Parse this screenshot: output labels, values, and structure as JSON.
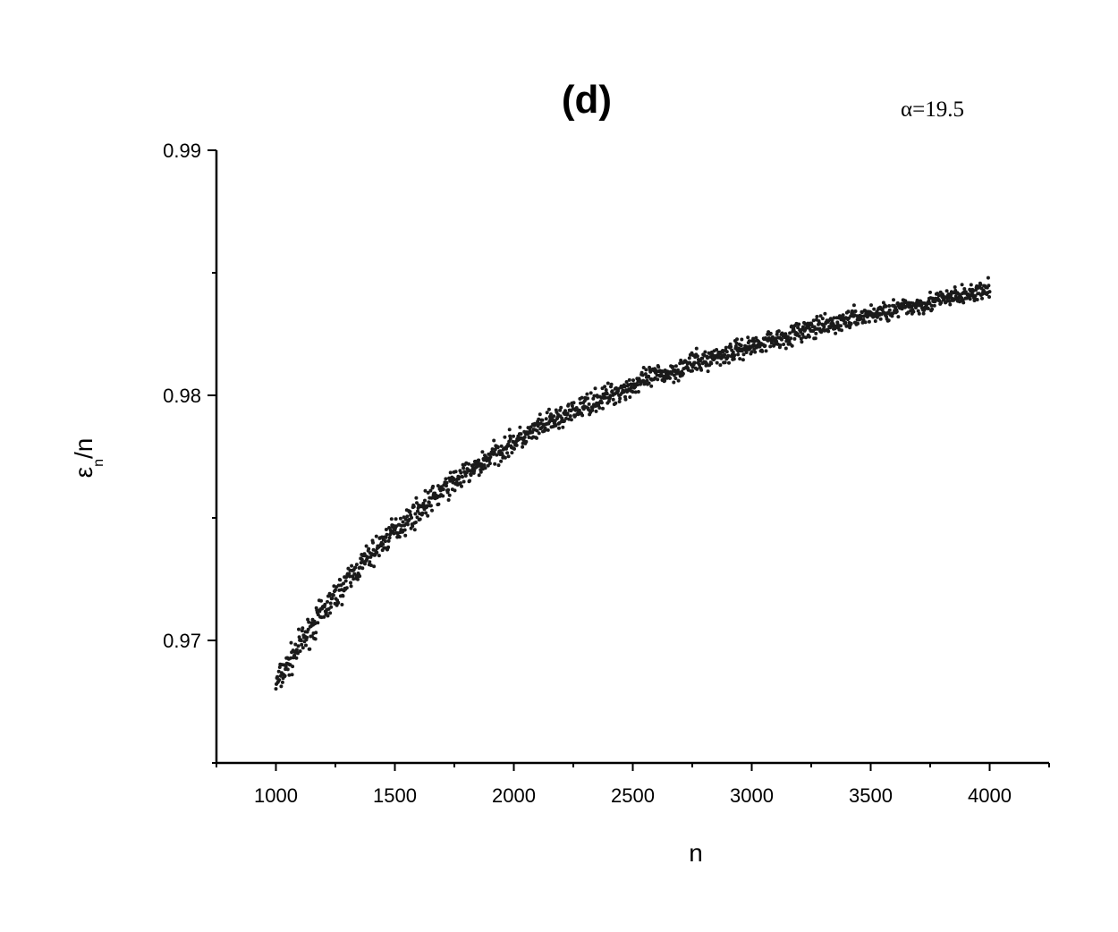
{
  "chart_data": {
    "type": "scatter",
    "title": "(d)",
    "annotation": "α=19.5",
    "xlabel": "n",
    "ylabel": {
      "main": "ε",
      "subscript": "n",
      "suffix": "/n"
    },
    "xlim": [
      750,
      4250
    ],
    "ylim": [
      0.965,
      0.99
    ],
    "x_ticks": [
      1000,
      1500,
      2000,
      2500,
      3000,
      3500,
      4000
    ],
    "x_tick_labels": [
      "1000",
      "1500",
      "2000",
      "2500",
      "3000",
      "3500",
      "4000"
    ],
    "y_ticks": [
      0.97,
      0.98,
      0.99
    ],
    "y_tick_labels": [
      "0.97",
      "0.98",
      "0.99"
    ],
    "grid": false,
    "marker_color": "#1a1a1a",
    "series": [
      {
        "x": [
          1000,
          1050,
          1100,
          1150,
          1200,
          1250,
          1300,
          1350,
          1400,
          1450,
          1500,
          1550,
          1600,
          1650,
          1700,
          1750,
          1800,
          1850,
          1900,
          1950,
          2000,
          2050,
          2100,
          2150,
          2200,
          2250,
          2300,
          2350,
          2400,
          2450,
          2500,
          2550,
          2600,
          2650,
          2700,
          2750,
          2800,
          2850,
          2900,
          2950,
          3000,
          3050,
          3100,
          3150,
          3200,
          3250,
          3300,
          3350,
          3400,
          3450,
          3500,
          3550,
          3600,
          3650,
          3700,
          3750,
          3800,
          3850,
          3900,
          3950,
          4000
        ],
        "y": [
          0.9682,
          0.969,
          0.9698,
          0.9705,
          0.9712,
          0.9718,
          0.9724,
          0.973,
          0.9735,
          0.974,
          0.9745,
          0.9749,
          0.9753,
          0.9757,
          0.9761,
          0.9765,
          0.9768,
          0.9771,
          0.9775,
          0.9778,
          0.9781,
          0.9783,
          0.9786,
          0.9789,
          0.9791,
          0.9793,
          0.9796,
          0.9798,
          0.98,
          0.9802,
          0.9804,
          0.9806,
          0.9808,
          0.9809,
          0.9811,
          0.9813,
          0.9814,
          0.9816,
          0.9817,
          0.9819,
          0.982,
          0.9822,
          0.9823,
          0.9824,
          0.9826,
          0.9827,
          0.9828,
          0.9829,
          0.9831,
          0.9832,
          0.9833,
          0.9834,
          0.9835,
          0.9836,
          0.9837,
          0.9838,
          0.9839,
          0.984,
          0.9841,
          0.9842,
          0.9843
        ]
      }
    ]
  }
}
